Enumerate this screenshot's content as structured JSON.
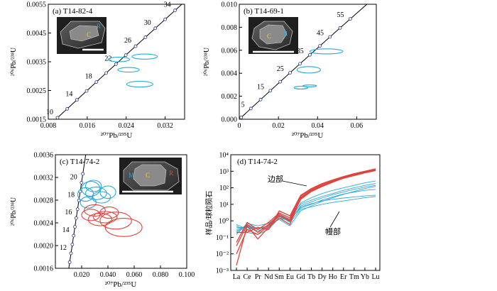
{
  "chart_data": [
    {
      "type": "scatter",
      "panel_label": "(a) T14-82-4",
      "xlabel": "²⁰⁷Pb/²³⁵U",
      "ylabel": "²⁰⁶Pb/²³⁸U",
      "xlim": [
        0.008,
        0.036
      ],
      "ylim": [
        0.0015,
        0.0055
      ],
      "xticks": [
        "0.008",
        "0.016",
        "0.024",
        "0.032"
      ],
      "yticks": [
        "0.0015",
        "0.0025",
        "0.0035",
        "0.0045",
        "0.0055"
      ],
      "concordia_ages": [
        "10",
        "14",
        "18",
        "22",
        "26",
        "30",
        "34"
      ],
      "inset_labels": [
        "C",
        "R"
      ],
      "ellipse_color": "#29a8d6",
      "ellipses": [
        {
          "x": 0.0225,
          "y": 0.00358,
          "rx": 0.0022,
          "ry": 8e-05
        },
        {
          "x": 0.0245,
          "y": 0.00322,
          "rx": 0.0022,
          "ry": 8e-05
        },
        {
          "x": 0.0278,
          "y": 0.00368,
          "rx": 0.0026,
          "ry": 9e-05
        },
        {
          "x": 0.0268,
          "y": 0.00272,
          "rx": 0.0027,
          "ry": 0.0001
        }
      ]
    },
    {
      "type": "scatter",
      "panel_label": "(b) T14-69-1",
      "xlabel": "²⁰⁷Pb/²³⁵U",
      "ylabel": "²⁰⁶Pb/²³⁸U",
      "xlim": [
        0.0,
        0.07
      ],
      "ylim": [
        0.0,
        0.01
      ],
      "xticks": [
        "0",
        "0.02",
        "0.04",
        "0.06"
      ],
      "yticks": [
        "0.000",
        "0.002",
        "0.004",
        "0.006",
        "0.008",
        "0.010"
      ],
      "concordia_ages": [
        "5",
        "15",
        "25",
        "35",
        "45",
        "55"
      ],
      "inset_labels": [
        "C",
        "R"
      ],
      "ellipse_color": "#29a8d6",
      "ellipses": [
        {
          "x": 0.0445,
          "y": 0.0059,
          "rx": 0.0085,
          "ry": 0.00022
        },
        {
          "x": 0.0355,
          "y": 0.0043,
          "rx": 0.006,
          "ry": 0.00028
        },
        {
          "x": 0.0315,
          "y": 0.00275,
          "rx": 0.0035,
          "ry": 0.00012
        },
        {
          "x": 0.036,
          "y": 0.0029,
          "rx": 0.0035,
          "ry": 8e-05
        }
      ]
    },
    {
      "type": "scatter",
      "panel_label": "(c) T14-74-2",
      "xlabel": "²⁰⁷Pb/²³⁵U",
      "ylabel": "²⁰⁶Pb/²³⁸U",
      "xlim": [
        0.0,
        0.1
      ],
      "ylim": [
        0.0016,
        0.0036
      ],
      "xticks": [
        "0.020",
        "0.040",
        "0.060",
        "0.080",
        "0.100"
      ],
      "yticks": [
        "0.0016",
        "0.0020",
        "0.0024",
        "0.0028",
        "0.0032",
        "0.0036"
      ],
      "concordia_ages": [
        "12",
        "14",
        "16",
        "18",
        "20"
      ],
      "inset_labels": [
        "M",
        "C",
        "R"
      ],
      "series": [
        {
          "color": "#29a8d6",
          "ellipses": [
            {
              "x": 0.023,
              "y": 0.0029,
              "rx": 0.006,
              "ry": 0.00012
            },
            {
              "x": 0.027,
              "y": 0.003,
              "rx": 0.007,
              "ry": 0.00013
            },
            {
              "x": 0.031,
              "y": 0.00292,
              "rx": 0.008,
              "ry": 0.00011
            },
            {
              "x": 0.025,
              "y": 0.00276,
              "rx": 0.006,
              "ry": 0.0001
            },
            {
              "x": 0.035,
              "y": 0.00285,
              "rx": 0.007,
              "ry": 0.0001
            },
            {
              "x": 0.04,
              "y": 0.00294,
              "rx": 0.006,
              "ry": 0.00011
            },
            {
              "x": 0.029,
              "y": 0.00305,
              "rx": 0.006,
              "ry": 0.0001
            }
          ]
        },
        {
          "color": "#e0423a",
          "ellipses": [
            {
              "x": 0.027,
              "y": 0.00254,
              "rx": 0.007,
              "ry": 0.0001
            },
            {
              "x": 0.034,
              "y": 0.00246,
              "rx": 0.009,
              "ry": 0.00011
            },
            {
              "x": 0.03,
              "y": 0.00262,
              "rx": 0.008,
              "ry": 0.0001
            },
            {
              "x": 0.046,
              "y": 0.00244,
              "rx": 0.012,
              "ry": 0.00015
            },
            {
              "x": 0.041,
              "y": 0.00258,
              "rx": 0.007,
              "ry": 0.0001
            },
            {
              "x": 0.052,
              "y": 0.00232,
              "rx": 0.014,
              "ry": 0.00016
            },
            {
              "x": 0.038,
              "y": 0.0025,
              "rx": 0.009,
              "ry": 0.0001
            }
          ]
        }
      ]
    },
    {
      "type": "line",
      "panel_label": "(d) T14-74-2",
      "ylabel": "样品/球粒陨石",
      "yscale": "log",
      "ylim": [
        0.001,
        10000
      ],
      "yticks": [
        "10⁻³",
        "10⁻²",
        "10⁻¹",
        "10⁰",
        "10¹",
        "10²",
        "10³",
        "10⁴"
      ],
      "categories": [
        "La",
        "Ce",
        "Pr",
        "Nd",
        "Sm",
        "Eu",
        "Gd",
        "Tb",
        "Dy",
        "Ho",
        "Er",
        "Tm",
        "Yb",
        "Lu"
      ],
      "annotations": [
        "边部",
        "幔部"
      ],
      "series": [
        {
          "group": "mantle",
          "color": "#2ea8d6",
          "values": [
            0.3,
            0.5,
            0.2,
            0.6,
            1.2,
            0.5,
            4,
            8,
            15,
            25,
            40,
            60,
            90,
            120
          ]
        },
        {
          "group": "mantle",
          "color": "#2ea8d6",
          "values": [
            0.6,
            0.3,
            0.4,
            0.3,
            2.5,
            1.2,
            6,
            10,
            18,
            28,
            42,
            55,
            70,
            80
          ]
        },
        {
          "group": "mantle",
          "color": "#2ea8d6",
          "values": [
            0.2,
            0.6,
            0.3,
            0.5,
            1.8,
            0.9,
            8,
            14,
            24,
            38,
            55,
            80,
            110,
            140
          ]
        },
        {
          "group": "mantle",
          "color": "#2ea8d6",
          "values": [
            0.4,
            0.4,
            0.25,
            0.4,
            3.0,
            1.5,
            10,
            18,
            30,
            45,
            70,
            100,
            140,
            180
          ]
        },
        {
          "group": "mantle",
          "color": "#2ea8d6",
          "values": [
            0.15,
            0.7,
            0.5,
            0.7,
            2.0,
            0.8,
            5,
            7,
            10,
            13,
            16,
            20,
            25,
            30
          ]
        },
        {
          "group": "mantle",
          "color": "#2ea8d6",
          "values": [
            0.5,
            0.2,
            0.15,
            0.3,
            1.5,
            1.0,
            12,
            25,
            45,
            70,
            100,
            140,
            200,
            260
          ]
        },
        {
          "group": "mantle",
          "color": "#2ea8d6",
          "values": [
            0.25,
            0.45,
            0.35,
            0.5,
            2.2,
            1.1,
            7,
            11,
            16,
            20,
            24,
            28,
            32,
            36
          ]
        },
        {
          "group": "rim",
          "color": "#e0423a",
          "values": [
            0.01,
            0.3,
            0.15,
            0.5,
            2.0,
            1.0,
            20,
            60,
            120,
            220,
            380,
            550,
            800,
            1100
          ]
        },
        {
          "group": "rim",
          "color": "#e0423a",
          "values": [
            0.05,
            0.8,
            0.3,
            0.8,
            3.0,
            1.5,
            30,
            80,
            160,
            280,
            450,
            700,
            950,
            1300
          ]
        },
        {
          "group": "rim",
          "color": "#e0423a",
          "values": [
            0.002,
            0.5,
            0.08,
            0.4,
            1.5,
            0.6,
            25,
            70,
            140,
            250,
            420,
            620,
            880,
            1200
          ]
        },
        {
          "group": "rim",
          "color": "#e0423a",
          "values": [
            0.2,
            0.2,
            0.4,
            0.3,
            4.0,
            2.0,
            35,
            90,
            180,
            300,
            480,
            720,
            1000,
            1400
          ]
        },
        {
          "group": "rim",
          "color": "#e0423a",
          "values": [
            0.03,
            0.6,
            0.2,
            0.6,
            2.5,
            1.2,
            22,
            65,
            130,
            240,
            400,
            600,
            850,
            1150
          ]
        }
      ]
    }
  ]
}
